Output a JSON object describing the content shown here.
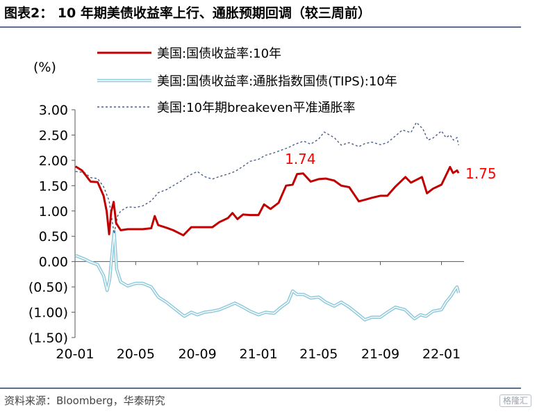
{
  "title": "图表2：  10 年期美债收益率上行、通胀预期回调（较三周前）",
  "source": "资料来源：Bloomberg，华泰研究",
  "watermark": "格隆汇",
  "chart_data": {
    "type": "line",
    "unit_label": "(%)",
    "ylim": [
      -1.5,
      3.0
    ],
    "yticks": [
      3.0,
      2.5,
      2.0,
      1.5,
      1.0,
      0.5,
      0.0,
      -0.5,
      -1.0,
      -1.5
    ],
    "ytick_labels": [
      "3.00",
      "2.50",
      "2.00",
      "1.50",
      "1.00",
      "0.50",
      "0.00",
      "(0.50)",
      "(1.00)",
      "(1.50)"
    ],
    "xlim": [
      "2020-01-01",
      "2022-02-15"
    ],
    "xtick_dates": [
      "2020-01-01",
      "2020-05-01",
      "2020-09-01",
      "2021-01-01",
      "2021-05-01",
      "2021-09-01",
      "2022-01-01"
    ],
    "xtick_labels": [
      "20-01",
      "20-05",
      "20-09",
      "21-01",
      "21-05",
      "21-09",
      "22-01"
    ],
    "grid": false,
    "legend_position": "top",
    "series": [
      {
        "name": "美国:国债收益率:10年",
        "color": "#c00000",
        "style": "solid",
        "points": [
          [
            "2020-01-02",
            1.88
          ],
          [
            "2020-01-15",
            1.8
          ],
          [
            "2020-02-01",
            1.58
          ],
          [
            "2020-02-15",
            1.57
          ],
          [
            "2020-02-27",
            1.3
          ],
          [
            "2020-03-04",
            1.0
          ],
          [
            "2020-03-09",
            0.54
          ],
          [
            "2020-03-13",
            0.98
          ],
          [
            "2020-03-18",
            1.18
          ],
          [
            "2020-03-23",
            0.76
          ],
          [
            "2020-04-01",
            0.62
          ],
          [
            "2020-04-15",
            0.64
          ],
          [
            "2020-05-01",
            0.64
          ],
          [
            "2020-05-15",
            0.64
          ],
          [
            "2020-06-01",
            0.66
          ],
          [
            "2020-06-08",
            0.9
          ],
          [
            "2020-06-15",
            0.72
          ],
          [
            "2020-07-01",
            0.67
          ],
          [
            "2020-07-15",
            0.62
          ],
          [
            "2020-08-04",
            0.52
          ],
          [
            "2020-08-20",
            0.68
          ],
          [
            "2020-09-01",
            0.68
          ],
          [
            "2020-09-15",
            0.68
          ],
          [
            "2020-10-01",
            0.68
          ],
          [
            "2020-10-15",
            0.78
          ],
          [
            "2020-11-01",
            0.86
          ],
          [
            "2020-11-10",
            0.96
          ],
          [
            "2020-11-20",
            0.84
          ],
          [
            "2020-12-01",
            0.93
          ],
          [
            "2020-12-15",
            0.92
          ],
          [
            "2021-01-01",
            0.92
          ],
          [
            "2021-01-12",
            1.13
          ],
          [
            "2021-01-25",
            1.04
          ],
          [
            "2021-02-10",
            1.16
          ],
          [
            "2021-02-25",
            1.5
          ],
          [
            "2021-03-10",
            1.52
          ],
          [
            "2021-03-19",
            1.73
          ],
          [
            "2021-03-31",
            1.74
          ],
          [
            "2021-04-15",
            1.58
          ],
          [
            "2021-05-01",
            1.63
          ],
          [
            "2021-05-15",
            1.64
          ],
          [
            "2021-06-01",
            1.6
          ],
          [
            "2021-06-15",
            1.5
          ],
          [
            "2021-07-01",
            1.47
          ],
          [
            "2021-07-20",
            1.19
          ],
          [
            "2021-08-01",
            1.22
          ],
          [
            "2021-08-15",
            1.26
          ],
          [
            "2021-09-01",
            1.3
          ],
          [
            "2021-09-15",
            1.3
          ],
          [
            "2021-10-01",
            1.48
          ],
          [
            "2021-10-21",
            1.67
          ],
          [
            "2021-11-01",
            1.56
          ],
          [
            "2021-11-23",
            1.67
          ],
          [
            "2021-12-03",
            1.35
          ],
          [
            "2021-12-15",
            1.44
          ],
          [
            "2022-01-01",
            1.52
          ],
          [
            "2022-01-18",
            1.87
          ],
          [
            "2022-01-24",
            1.75
          ],
          [
            "2022-02-01",
            1.8
          ],
          [
            "2022-02-04",
            1.75
          ]
        ]
      },
      {
        "name": "美国:国债收益率:通胀指数国债(TIPS):10年",
        "color": "#8ec9dc",
        "style": "double",
        "points": [
          [
            "2020-01-02",
            0.12
          ],
          [
            "2020-01-20",
            0.05
          ],
          [
            "2020-02-01",
            -0.01
          ],
          [
            "2020-02-15",
            -0.06
          ],
          [
            "2020-02-27",
            -0.28
          ],
          [
            "2020-03-05",
            -0.57
          ],
          [
            "2020-03-10",
            -0.36
          ],
          [
            "2020-03-19",
            0.6
          ],
          [
            "2020-03-24",
            -0.15
          ],
          [
            "2020-04-01",
            -0.4
          ],
          [
            "2020-04-15",
            -0.48
          ],
          [
            "2020-05-01",
            -0.43
          ],
          [
            "2020-05-15",
            -0.43
          ],
          [
            "2020-06-01",
            -0.5
          ],
          [
            "2020-06-15",
            -0.7
          ],
          [
            "2020-07-01",
            -0.8
          ],
          [
            "2020-07-20",
            -0.95
          ],
          [
            "2020-08-06",
            -1.08
          ],
          [
            "2020-08-20",
            -1.0
          ],
          [
            "2020-09-01",
            -1.05
          ],
          [
            "2020-09-15",
            -1.0
          ],
          [
            "2020-10-01",
            -0.98
          ],
          [
            "2020-10-15",
            -0.95
          ],
          [
            "2020-11-01",
            -0.88
          ],
          [
            "2020-11-15",
            -0.82
          ],
          [
            "2020-12-01",
            -0.9
          ],
          [
            "2020-12-15",
            -0.98
          ],
          [
            "2021-01-01",
            -1.05
          ],
          [
            "2021-01-15",
            -1.0
          ],
          [
            "2021-02-01",
            -1.02
          ],
          [
            "2021-02-15",
            -0.9
          ],
          [
            "2021-03-01",
            -0.8
          ],
          [
            "2021-03-10",
            -0.58
          ],
          [
            "2021-03-19",
            -0.65
          ],
          [
            "2021-04-01",
            -0.65
          ],
          [
            "2021-04-15",
            -0.72
          ],
          [
            "2021-05-01",
            -0.7
          ],
          [
            "2021-05-15",
            -0.8
          ],
          [
            "2021-06-01",
            -0.88
          ],
          [
            "2021-06-15",
            -0.8
          ],
          [
            "2021-07-01",
            -0.9
          ],
          [
            "2021-07-20",
            -1.05
          ],
          [
            "2021-08-01",
            -1.15
          ],
          [
            "2021-08-15",
            -1.1
          ],
          [
            "2021-09-01",
            -1.1
          ],
          [
            "2021-09-15",
            -1.0
          ],
          [
            "2021-10-01",
            -0.9
          ],
          [
            "2021-10-20",
            -0.95
          ],
          [
            "2021-11-08",
            -1.13
          ],
          [
            "2021-11-20",
            -1.05
          ],
          [
            "2021-12-01",
            -1.08
          ],
          [
            "2021-12-15",
            -0.98
          ],
          [
            "2022-01-01",
            -0.95
          ],
          [
            "2022-01-10",
            -0.8
          ],
          [
            "2022-01-20",
            -0.68
          ],
          [
            "2022-01-28",
            -0.55
          ],
          [
            "2022-02-01",
            -0.5
          ],
          [
            "2022-02-04",
            -0.62
          ]
        ]
      },
      {
        "name": "美国:10年期breakeven平准通胀率",
        "color": "#4a5e85",
        "style": "dashed",
        "points": [
          [
            "2020-01-02",
            1.78
          ],
          [
            "2020-01-20",
            1.76
          ],
          [
            "2020-02-01",
            1.66
          ],
          [
            "2020-02-15",
            1.64
          ],
          [
            "2020-02-27",
            1.48
          ],
          [
            "2020-03-09",
            1.2
          ],
          [
            "2020-03-19",
            0.55
          ],
          [
            "2020-03-26",
            0.9
          ],
          [
            "2020-04-01",
            1.0
          ],
          [
            "2020-04-15",
            1.08
          ],
          [
            "2020-05-01",
            1.07
          ],
          [
            "2020-05-15",
            1.1
          ],
          [
            "2020-06-01",
            1.2
          ],
          [
            "2020-06-15",
            1.36
          ],
          [
            "2020-07-01",
            1.42
          ],
          [
            "2020-07-15",
            1.5
          ],
          [
            "2020-08-01",
            1.6
          ],
          [
            "2020-08-15",
            1.7
          ],
          [
            "2020-09-01",
            1.78
          ],
          [
            "2020-09-15",
            1.68
          ],
          [
            "2020-10-01",
            1.63
          ],
          [
            "2020-10-15",
            1.68
          ],
          [
            "2020-11-01",
            1.73
          ],
          [
            "2020-11-15",
            1.78
          ],
          [
            "2020-12-01",
            1.88
          ],
          [
            "2020-12-15",
            1.98
          ],
          [
            "2021-01-01",
            2.02
          ],
          [
            "2021-01-15",
            2.1
          ],
          [
            "2021-02-01",
            2.15
          ],
          [
            "2021-02-15",
            2.2
          ],
          [
            "2021-03-01",
            2.25
          ],
          [
            "2021-03-15",
            2.32
          ],
          [
            "2021-04-01",
            2.38
          ],
          [
            "2021-04-15",
            2.32
          ],
          [
            "2021-05-01",
            2.42
          ],
          [
            "2021-05-12",
            2.56
          ],
          [
            "2021-06-01",
            2.45
          ],
          [
            "2021-06-15",
            2.3
          ],
          [
            "2021-07-01",
            2.35
          ],
          [
            "2021-07-20",
            2.27
          ],
          [
            "2021-08-01",
            2.33
          ],
          [
            "2021-08-15",
            2.36
          ],
          [
            "2021-09-01",
            2.31
          ],
          [
            "2021-09-15",
            2.35
          ],
          [
            "2021-10-01",
            2.48
          ],
          [
            "2021-10-15",
            2.6
          ],
          [
            "2021-11-01",
            2.55
          ],
          [
            "2021-11-12",
            2.75
          ],
          [
            "2021-11-25",
            2.62
          ],
          [
            "2021-12-05",
            2.4
          ],
          [
            "2021-12-15",
            2.44
          ],
          [
            "2022-01-01",
            2.58
          ],
          [
            "2022-01-10",
            2.45
          ],
          [
            "2022-01-18",
            2.5
          ],
          [
            "2022-01-25",
            2.4
          ],
          [
            "2022-02-01",
            2.45
          ],
          [
            "2022-02-04",
            2.3
          ]
        ]
      }
    ],
    "annotations": [
      {
        "text": "1.74",
        "date": "2021-03-31",
        "value": 1.74,
        "color": "#ff0000"
      },
      {
        "text": "1.75",
        "date": "2022-02-04",
        "value": 1.75,
        "color": "#ff0000"
      }
    ]
  }
}
